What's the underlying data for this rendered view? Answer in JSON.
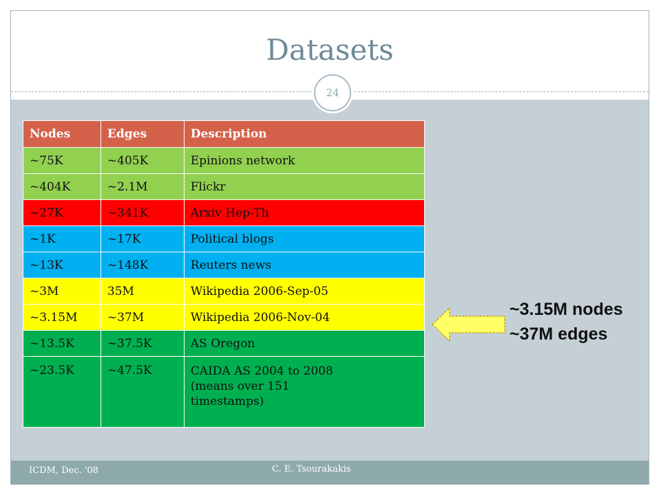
{
  "slide": {
    "title": "Datasets",
    "number": "24"
  },
  "table": {
    "headers": [
      "Nodes",
      "Edges",
      "Description"
    ],
    "header_color": "#d4624b",
    "rows": [
      {
        "nodes": "~75K",
        "edges": "~405K",
        "description": "Epinions network",
        "color": "#92d050"
      },
      {
        "nodes": "~404K",
        "edges": "~2.1M",
        "description": "Flickr",
        "color": "#92d050"
      },
      {
        "nodes": "~27K",
        "edges": "~341K",
        "description": "Arxiv Hep-Th",
        "color": "#ff0000"
      },
      {
        "nodes": "~1K",
        "edges": "~17K",
        "description": "Political blogs",
        "color": "#00b0f0"
      },
      {
        "nodes": "~13K",
        "edges": "~148K",
        "description": "Reuters news",
        "color": "#00b0f0"
      },
      {
        "nodes": "~3M",
        "edges": "35M",
        "description": "Wikipedia 2006-Sep-05",
        "color": "#ffff00"
      },
      {
        "nodes": "~3.15M",
        "edges": "~37M",
        "description": "Wikipedia 2006-Nov-04",
        "color": "#ffff00"
      },
      {
        "nodes": "~13.5K",
        "edges": "~37.5K",
        "description": "AS Oregon",
        "color": "#00b050"
      },
      {
        "nodes": "~23.5K",
        "edges": "~47.5K",
        "description": "CAIDA AS 2004 to 2008\n(means over 151\n  timestamps)",
        "color": "#00b050"
      }
    ]
  },
  "callout": {
    "line1": "~3.15M nodes",
    "line2": "~37M edges",
    "arrow_icon": "left-arrow-icon",
    "arrow_color": "#ffff66"
  },
  "footer": {
    "left": "ICDM, Dec. '08",
    "center": "C.  E. Tsourakakis"
  }
}
